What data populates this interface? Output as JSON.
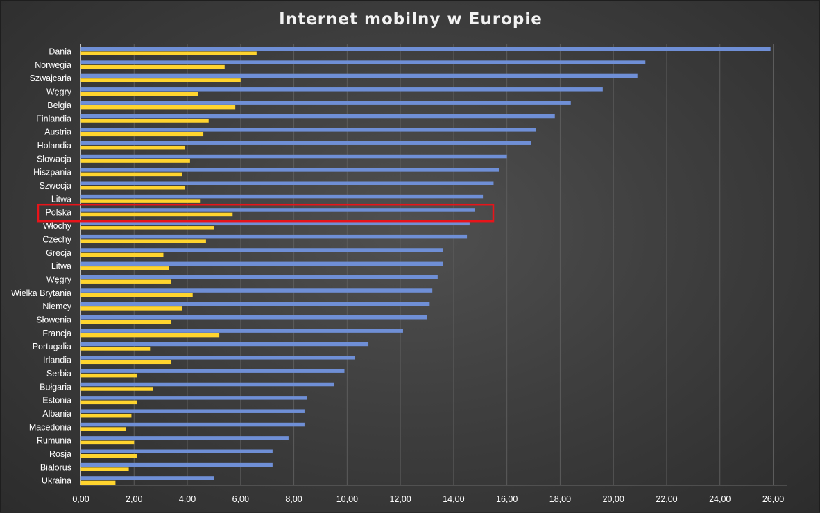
{
  "chart_data": {
    "type": "bar",
    "orientation": "horizontal",
    "title": "Internet mobilny w Europie",
    "categories": [
      "Dania",
      "Norwegia",
      "Szwajcaria",
      "Węgry",
      "Belgia",
      "Finlandia",
      "Austria",
      "Holandia",
      "Słowacja",
      "Hiszpania",
      "Szwecja",
      "Litwa",
      "Polska",
      "Włochy",
      "Czechy",
      "Grecja",
      "Litwa",
      "Węgry",
      "Wielka Brytania",
      "Niemcy",
      "Słowenia",
      "Francja",
      "Portugalia",
      "Irlandia",
      "Serbia",
      "Bułgaria",
      "Estonia",
      "Albania",
      "Macedonia",
      "Rumunia",
      "Rosja",
      "Białoruś",
      "Ukraina"
    ],
    "series": [
      {
        "color": "#6f8fd6",
        "values": [
          25.9,
          21.2,
          20.9,
          19.6,
          18.4,
          17.8,
          17.1,
          16.9,
          16.0,
          15.7,
          15.5,
          15.1,
          14.8,
          14.6,
          14.5,
          13.6,
          13.6,
          13.4,
          13.2,
          13.1,
          13.0,
          12.1,
          10.8,
          10.3,
          9.9,
          9.5,
          8.5,
          8.4,
          8.4,
          7.8,
          7.2,
          7.2,
          5.0
        ]
      },
      {
        "color": "#ffd42e",
        "values": [
          6.6,
          5.4,
          6.0,
          4.4,
          5.8,
          4.8,
          4.6,
          3.9,
          4.1,
          3.8,
          3.9,
          4.5,
          5.7,
          5.0,
          4.7,
          3.1,
          3.3,
          3.4,
          4.2,
          3.8,
          3.4,
          5.2,
          2.6,
          3.4,
          2.1,
          2.7,
          2.1,
          1.9,
          1.7,
          2.0,
          2.1,
          1.8,
          1.3
        ]
      }
    ],
    "xlim": [
      0,
      26
    ],
    "x_ticks": [
      "0,00",
      "2,00",
      "4,00",
      "6,00",
      "8,00",
      "10,00",
      "12,00",
      "14,00",
      "16,00",
      "18,00",
      "20,00",
      "22,00",
      "24,00",
      "26,00"
    ],
    "grid": true,
    "highlight": {
      "category": "Polska",
      "color": "#e8141a"
    }
  }
}
